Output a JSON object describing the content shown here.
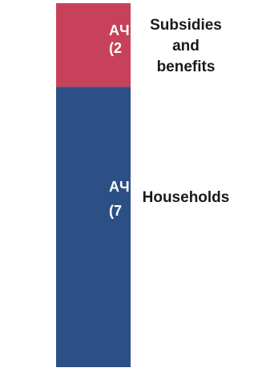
{
  "chart_data": {
    "type": "bar",
    "stacked": true,
    "series": [
      {
        "name": "Households",
        "value": 77,
        "value_label_visible": "AЧ",
        "value_label_second_visible": "(7",
        "color": "#2c5085",
        "category_label_lines": [
          "Households"
        ]
      },
      {
        "name": "Subsidies and benefits",
        "value": 23,
        "value_label_visible": "AЧ",
        "value_label_second_visible": "(2",
        "color": "#c8415a",
        "category_label_lines": [
          "Subsidies",
          "and",
          "benefits"
        ]
      }
    ],
    "ylim": [
      0,
      100
    ]
  }
}
